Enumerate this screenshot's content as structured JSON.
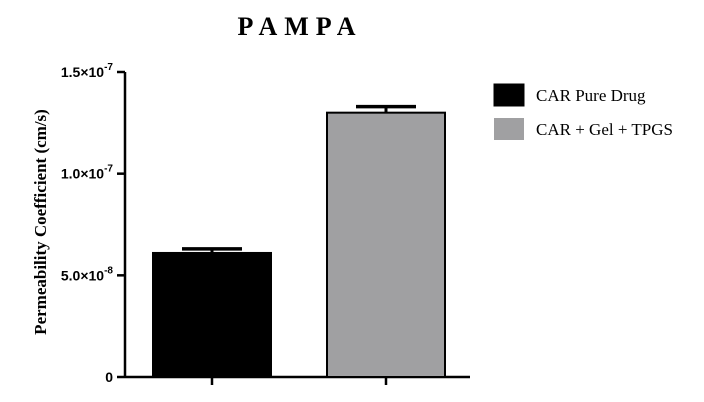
{
  "chart_data": {
    "type": "bar",
    "title": "PAMPA",
    "ylabel": "Permeability Coefficient (cm/s)",
    "xlabel": "",
    "ylim": [
      0,
      1.5e-07
    ],
    "y_ticks": [
      {
        "value": 0,
        "label": "0"
      },
      {
        "value": 5e-08,
        "label": "5.0×10",
        "exp": "-8"
      },
      {
        "value": 1e-07,
        "label": "1.0×10",
        "exp": "-7"
      },
      {
        "value": 1.5e-07,
        "label": "1.5×10",
        "exp": "-7"
      }
    ],
    "series": [
      {
        "name": "CAR Pure Drug",
        "value": 6.1e-08,
        "error": 2e-09,
        "color": "#000000"
      },
      {
        "name": "CAR + Gel + TPGS",
        "value": 1.3e-07,
        "error": 3e-09,
        "color": "#a0a0a2"
      }
    ],
    "legend_position": "top-right",
    "grid": false
  }
}
